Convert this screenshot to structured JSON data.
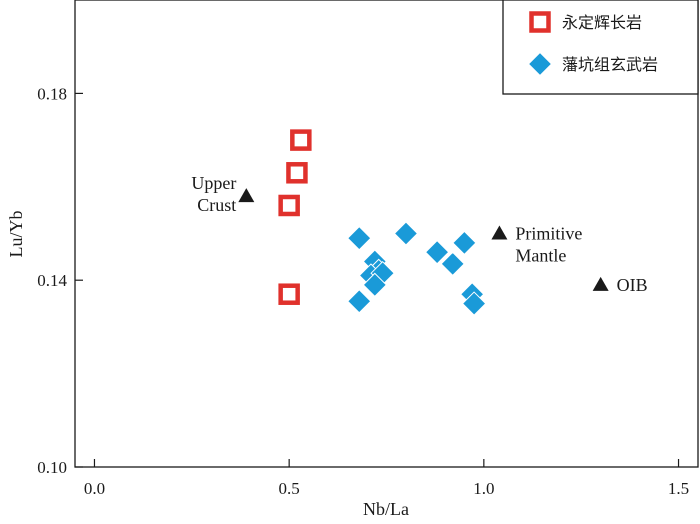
{
  "chart_data": {
    "type": "scatter",
    "xlabel": "Nb/La",
    "ylabel": "Lu/Yb",
    "xlim": [
      -0.05,
      1.55
    ],
    "ylim": [
      0.1,
      0.2
    ],
    "x_ticks": [
      {
        "value": 0.0,
        "label": "0.0"
      },
      {
        "value": 0.5,
        "label": "0.5"
      },
      {
        "value": 1.0,
        "label": "1.0"
      },
      {
        "value": 1.5,
        "label": "1.5"
      }
    ],
    "y_ticks": [
      {
        "value": 0.1,
        "label": "0.10"
      },
      {
        "value": 0.14,
        "label": "0.14"
      },
      {
        "value": 0.18,
        "label": "0.18"
      }
    ],
    "grid": false,
    "legend_position": "top-right",
    "series": [
      {
        "name": "永定辉长岩",
        "marker": "square",
        "color": "#e0312c",
        "points": [
          {
            "x": 0.53,
            "y": 0.17
          },
          {
            "x": 0.52,
            "y": 0.163
          },
          {
            "x": 0.5,
            "y": 0.156
          },
          {
            "x": 0.5,
            "y": 0.137
          }
        ]
      },
      {
        "name": "藩坑组玄武岩",
        "marker": "diamond",
        "color": "#1a9ad8",
        "points": [
          {
            "x": 0.68,
            "y": 0.149
          },
          {
            "x": 0.8,
            "y": 0.15
          },
          {
            "x": 0.72,
            "y": 0.144
          },
          {
            "x": 0.73,
            "y": 0.142
          },
          {
            "x": 0.71,
            "y": 0.141
          },
          {
            "x": 0.74,
            "y": 0.1415
          },
          {
            "x": 0.72,
            "y": 0.139
          },
          {
            "x": 0.68,
            "y": 0.1355
          },
          {
            "x": 0.88,
            "y": 0.146
          },
          {
            "x": 0.92,
            "y": 0.1435
          },
          {
            "x": 0.95,
            "y": 0.148
          },
          {
            "x": 0.97,
            "y": 0.137
          },
          {
            "x": 0.975,
            "y": 0.135
          }
        ]
      }
    ],
    "reference_points": [
      {
        "label": [
          "Upper",
          "Crust"
        ],
        "x": 0.39,
        "y": 0.158,
        "label_side": "left"
      },
      {
        "label": [
          "Primitive",
          "Mantle"
        ],
        "x": 1.04,
        "y": 0.15,
        "label_side": "right"
      },
      {
        "label": [
          "OIB"
        ],
        "x": 1.3,
        "y": 0.139,
        "label_side": "right"
      }
    ],
    "reference_marker_color": "#1a1a1a"
  }
}
